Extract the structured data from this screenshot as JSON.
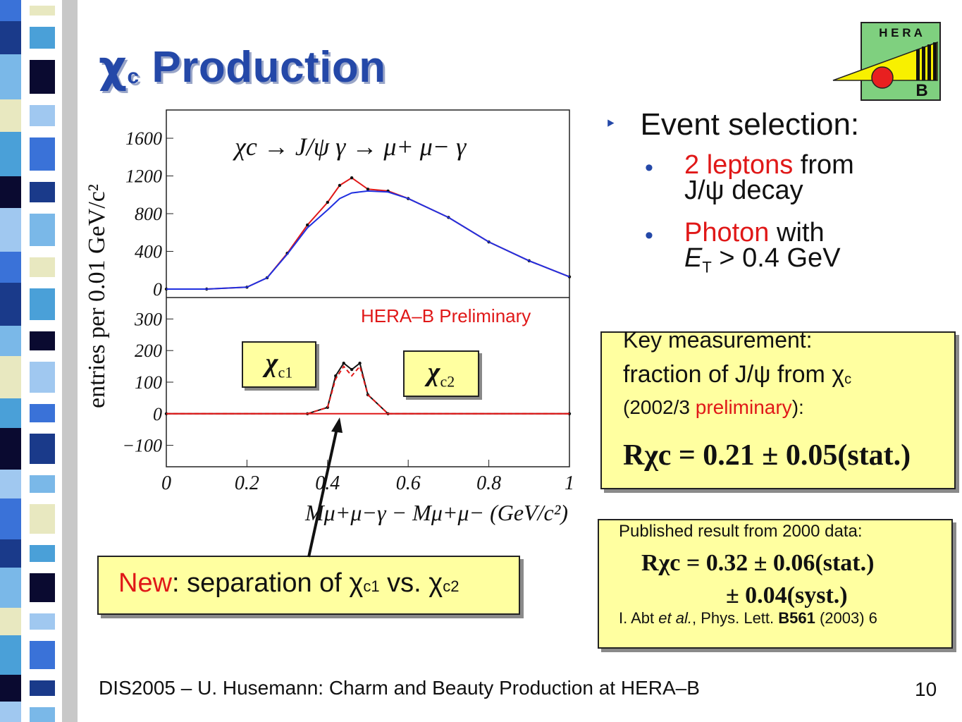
{
  "colors": {
    "title": "#2448a8",
    "accent_red": "#e01818",
    "box_fill": "#ffffa0",
    "fit_red": "#e01818",
    "fit_blue": "#2030e0",
    "fit_purple": "#7030a0"
  },
  "title": {
    "chi": "χ",
    "sub": "c",
    "rest": " Production"
  },
  "logo": {
    "text_top": "H E R A",
    "text_bottom": "B"
  },
  "bullets": {
    "main": "Event selection:",
    "item1": {
      "red": "2 leptons",
      "rest": " from",
      "line2": "J/ψ decay"
    },
    "item2": {
      "red": "Photon",
      "rest": " with",
      "line2a": "E",
      "line2sub": "T",
      "line2b": " > 0.4 GeV"
    }
  },
  "key_box": {
    "line1": "Key measurement:",
    "line2a": "fraction of J/ψ from χ",
    "line2sub": "c",
    "line3a": "(2002/3 ",
    "line3red": "preliminary",
    "line3b": "):",
    "formula": "Rχc = 0.21 ± 0.05(stat.)"
  },
  "pub_box": {
    "line1": "Published result from 2000 data:",
    "formula1": "Rχc = 0.32 ± 0.06(stat.)",
    "formula2": "± 0.04(syst.)",
    "ref_a": "I. Abt ",
    "ref_etal": "et al.",
    "ref_b": ", Phys. Lett. ",
    "ref_vol": "B561",
    "ref_c": " (2003) 6"
  },
  "new_box": {
    "red": "New",
    "a": ": separation of χ",
    "sub1": "c1",
    "b": " vs. χ",
    "sub2": "c2"
  },
  "chips": {
    "c1": "χ",
    "c1sub": "c1",
    "c2": "χ",
    "c2sub": "c2"
  },
  "prelim": "HERA–B Preliminary",
  "footer": "DIS2005 – U. Husemann: Charm and Beauty Production at HERA–B",
  "page_number": "10",
  "chart_data": {
    "type": "line",
    "title": "χc → J/ψ γ → μ+ μ− γ",
    "xlabel": "Mμ+μ−γ − Mμ+μ− (GeV/c²)",
    "ylabel": "entries per 0.01 GeV/c²",
    "xlim": [
      0,
      1
    ],
    "x_ticks": [
      "0",
      "0.2",
      "0.4",
      "0.6",
      "0.8",
      "1"
    ],
    "panels": [
      {
        "name": "top",
        "ylim": [
          0,
          1750
        ],
        "y_ticks": [
          "0",
          "400",
          "800",
          "1200",
          "1600"
        ],
        "x": [
          0.0,
          0.1,
          0.2,
          0.25,
          0.3,
          0.35,
          0.4,
          0.43,
          0.46,
          0.5,
          0.55,
          0.6,
          0.7,
          0.8,
          0.9,
          1.0
        ],
        "series": [
          {
            "values": [
              0,
              0,
              20,
              120,
              380,
              680,
              920,
              1100,
              1180,
              1060,
              1040,
              960,
              760,
              500,
              300,
              130
            ]
          },
          {
            "values": [
              0,
              0,
              20,
              120,
              370,
              650,
              840,
              960,
              1020,
              1040,
              1030,
              960,
              760,
              500,
              300,
              130
            ]
          }
        ]
      },
      {
        "name": "bottom",
        "ylim": [
          -150,
          350
        ],
        "y_ticks": [
          "−100",
          "0",
          "100",
          "200",
          "300"
        ],
        "x": [
          0.0,
          0.35,
          0.4,
          0.42,
          0.44,
          0.46,
          0.48,
          0.5,
          0.55,
          1.0
        ],
        "series": [
          {
            "values": [
              0,
              0,
              20,
              120,
              160,
              140,
              160,
              60,
              0,
              0
            ]
          },
          {
            "values": [
              0,
              0,
              20,
              110,
              150,
              120,
              150,
              60,
              0,
              0
            ]
          }
        ]
      }
    ]
  }
}
